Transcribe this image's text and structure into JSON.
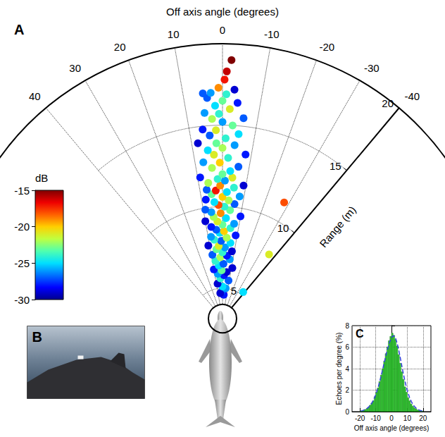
{
  "chart_data": [
    {
      "panel": "A",
      "type": "polar",
      "xlabel": "Off axis angle (degrees)",
      "xlim": [
        -40,
        40
      ],
      "xticks": [
        -40,
        -30,
        -20,
        -10,
        0,
        10,
        20,
        30,
        40
      ],
      "ylabel": "Range (m)",
      "ylim": [
        4,
        20
      ],
      "yticks": [
        5,
        10,
        15,
        20
      ],
      "grid": true,
      "colorbar": {
        "label": "dB",
        "range": [
          -30,
          -15
        ],
        "ticks": [
          -30,
          -25,
          -20,
          -15
        ]
      },
      "points": [
        [
          -3,
          4.6,
          -28
        ],
        [
          2,
          4.8,
          -27
        ],
        [
          5,
          4.7,
          -29
        ],
        [
          -6,
          5.0,
          -26
        ],
        [
          0,
          5.1,
          -25
        ],
        [
          8,
          5.3,
          -29
        ],
        [
          -9,
          5.5,
          -27
        ],
        [
          3,
          5.6,
          -24
        ],
        [
          -2,
          5.8,
          -28
        ],
        [
          6,
          5.9,
          -26
        ],
        [
          -5,
          6.0,
          -29
        ],
        [
          1,
          6.1,
          -23
        ],
        [
          10,
          6.2,
          -28
        ],
        [
          -11,
          6.3,
          -29
        ],
        [
          4,
          6.4,
          -25
        ],
        [
          -1,
          6.5,
          -27
        ],
        [
          7,
          6.7,
          -24
        ],
        [
          -7,
          6.8,
          -26
        ],
        [
          2,
          6.9,
          -22
        ],
        [
          -4,
          7.0,
          -28
        ],
        [
          9,
          7.1,
          -27
        ],
        [
          0,
          7.2,
          -24
        ],
        [
          -8,
          7.3,
          -29
        ],
        [
          5,
          7.4,
          -23
        ],
        [
          -2,
          7.5,
          -26
        ],
        [
          3,
          7.6,
          -21
        ],
        [
          11,
          7.7,
          -29
        ],
        [
          -6,
          7.8,
          -25
        ],
        [
          1,
          7.9,
          -27
        ],
        [
          6,
          8.0,
          -24
        ],
        [
          -3,
          8.1,
          -22
        ],
        [
          8,
          8.2,
          -26
        ],
        [
          -9,
          8.3,
          -28
        ],
        [
          2,
          8.4,
          -25
        ],
        [
          -1,
          8.5,
          -20
        ],
        [
          4,
          8.6,
          -27
        ],
        [
          -5,
          8.7,
          -24
        ],
        [
          7,
          8.8,
          -28
        ],
        [
          0,
          8.9,
          -23
        ],
        [
          -7,
          9.0,
          -26
        ],
        [
          3,
          9.1,
          -21
        ],
        [
          10,
          9.2,
          -29
        ],
        [
          -2,
          9.3,
          -25
        ],
        [
          5,
          9.4,
          -22
        ],
        [
          -10,
          9.5,
          -28
        ],
        [
          1,
          9.6,
          -19
        ],
        [
          6,
          9.7,
          -26
        ],
        [
          -4,
          9.8,
          -23
        ],
        [
          9,
          9.9,
          -27
        ],
        [
          -1,
          10.0,
          -24
        ],
        [
          2,
          10.1,
          -18
        ],
        [
          -6,
          10.2,
          -27
        ],
        [
          4,
          10.3,
          -25
        ],
        [
          -3,
          10.4,
          -22
        ],
        [
          8,
          10.5,
          -28
        ],
        [
          0,
          10.6,
          -20
        ],
        [
          -8,
          10.7,
          -26
        ],
        [
          5,
          10.8,
          -23
        ],
        [
          -2,
          10.9,
          -25
        ],
        [
          3,
          11.0,
          -17
        ],
        [
          7,
          11.1,
          -27
        ],
        [
          -5,
          11.2,
          -24
        ],
        [
          1,
          11.3,
          -19
        ],
        [
          -9,
          11.4,
          -29
        ],
        [
          6,
          11.5,
          -22
        ],
        [
          -1,
          11.6,
          -26
        ],
        [
          2,
          11.7,
          -24
        ],
        [
          -4,
          11.8,
          -21
        ],
        [
          9,
          11.9,
          -28
        ],
        [
          0,
          12.0,
          -23
        ],
        [
          -3,
          12.2,
          -25
        ],
        [
          4,
          12.4,
          -22
        ],
        [
          -6,
          12.5,
          -27
        ],
        [
          1,
          12.7,
          -20
        ],
        [
          7,
          12.8,
          -26
        ],
        [
          -2,
          13.0,
          -24
        ],
        [
          3,
          13.2,
          -21
        ],
        [
          -8,
          13.3,
          -28
        ],
        [
          5,
          13.5,
          -25
        ],
        [
          0,
          13.6,
          -22
        ],
        [
          -4,
          13.8,
          -26
        ],
        [
          2,
          13.9,
          -23
        ],
        [
          8,
          14.0,
          -29
        ],
        [
          -1,
          14.2,
          -24
        ],
        [
          4,
          14.4,
          -27
        ],
        [
          -5,
          14.5,
          -25
        ],
        [
          2,
          14.7,
          -21
        ],
        [
          6,
          14.8,
          -28
        ],
        [
          -3,
          15.0,
          -23
        ],
        [
          0,
          15.2,
          -26
        ],
        [
          3,
          15.4,
          -22
        ],
        [
          -6,
          15.5,
          -27
        ],
        [
          1,
          15.7,
          -24
        ],
        [
          5,
          15.8,
          -26
        ],
        [
          -2,
          16.0,
          -21
        ],
        [
          2,
          16.2,
          -25
        ],
        [
          -4,
          16.4,
          -28
        ],
        [
          0,
          16.5,
          -23
        ],
        [
          4,
          16.7,
          -27
        ],
        [
          -1,
          16.9,
          -24
        ],
        [
          3,
          17.0,
          -26
        ],
        [
          -3,
          17.2,
          -29
        ],
        [
          1,
          17.3,
          -19
        ],
        [
          5,
          17.0,
          -27
        ],
        [
          -0.5,
          17.8,
          -17
        ],
        [
          -1,
          18.3,
          -16
        ],
        [
          -2,
          19.0,
          -15
        ],
        [
          -28,
          11.2,
          -18
        ],
        [
          -36,
          8.0,
          -21
        ],
        [
          -38,
          5.2,
          -25
        ]
      ]
    },
    {
      "panel": "B",
      "type": "photo"
    },
    {
      "panel": "C",
      "type": "histogram",
      "xlabel": "Off axis angle (degrees)",
      "ylabel": "Echoes per degree (%)",
      "xlim": [
        -25,
        25
      ],
      "xticks": [
        -20,
        -10,
        0,
        10,
        20
      ],
      "ylim": [
        0,
        8
      ],
      "yticks": [
        0,
        2,
        4,
        6,
        8
      ],
      "grid": true,
      "bins": [
        -20,
        -19,
        -18,
        -17,
        -16,
        -15,
        -14,
        -13,
        -12,
        -11,
        -10,
        -9,
        -8,
        -7,
        -6,
        -5,
        -4,
        -3,
        -2,
        -1,
        0,
        1,
        2,
        3,
        4,
        5,
        6,
        7,
        8,
        9,
        10,
        11,
        12,
        13,
        14,
        15,
        16,
        17,
        18,
        19,
        20
      ],
      "series": [
        {
          "type": "bar",
          "color": "#33cc33",
          "values": [
            0.05,
            0.1,
            0.15,
            0.2,
            0.3,
            0.4,
            0.6,
            0.8,
            1.0,
            1.4,
            1.8,
            2.2,
            2.8,
            3.4,
            4.0,
            4.7,
            5.4,
            6.0,
            6.6,
            7.0,
            7.3,
            7.1,
            6.7,
            6.1,
            5.3,
            4.5,
            3.7,
            3.0,
            2.3,
            1.8,
            1.3,
            1.0,
            0.7,
            0.5,
            0.35,
            0.25,
            0.15,
            0.1,
            0.05,
            0.05
          ]
        },
        {
          "type": "line",
          "color": "#3344dd",
          "line_style": "dashed",
          "values": [
            0.06,
            0.09,
            0.14,
            0.21,
            0.3,
            0.42,
            0.58,
            0.79,
            1.05,
            1.38,
            1.78,
            2.25,
            2.78,
            3.37,
            3.99,
            4.62,
            5.24,
            5.82,
            6.33,
            6.74,
            7.0,
            7.05,
            6.85,
            6.42,
            5.8,
            5.07,
            4.3,
            3.55,
            2.86,
            2.25,
            1.73,
            1.3,
            0.96,
            0.69,
            0.49,
            0.34,
            0.23,
            0.15,
            0.1,
            0.06
          ]
        }
      ]
    }
  ]
}
